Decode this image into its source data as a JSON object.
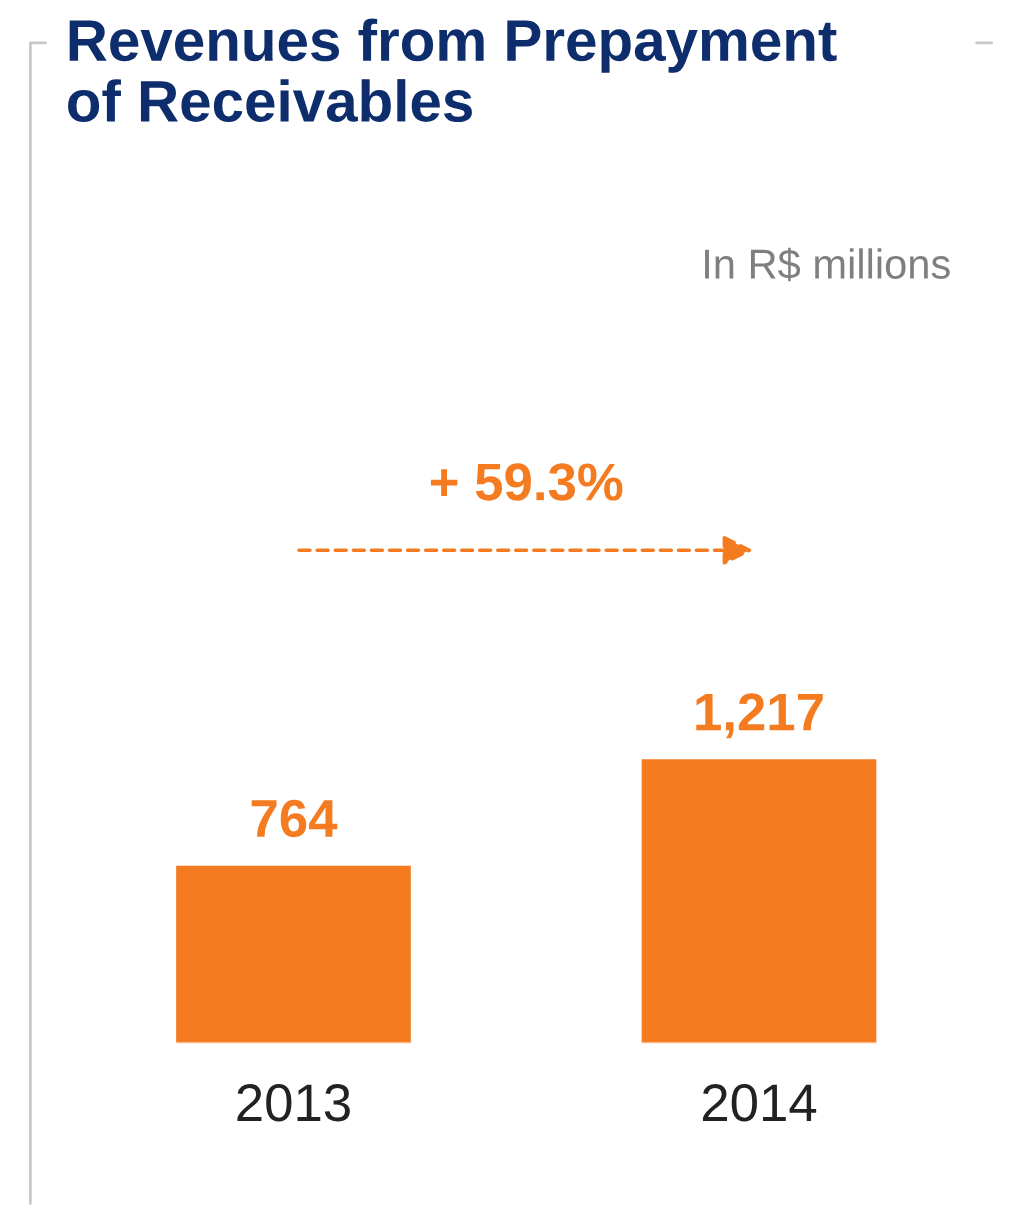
{
  "chart_data": {
    "type": "bar",
    "title": "Revenues from Prepayment\nof Receivables",
    "subtitle": "In R$ millions",
    "categories": [
      "2013",
      "2014"
    ],
    "values": [
      764,
      1217
    ],
    "color": "#f47b20",
    "value_labels": [
      "764",
      "1,217"
    ],
    "annotations": [
      "+ 59.3%"
    ],
    "grid": false,
    "legend": false
  }
}
